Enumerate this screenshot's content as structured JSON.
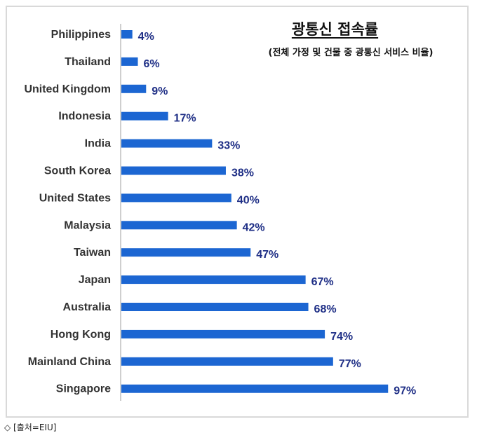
{
  "chart_data": {
    "type": "bar",
    "orientation": "horizontal",
    "title": "광통신 접속률",
    "subtitle": "(전체 가정 및 건물 중 광통신 서비스 비율)",
    "categories": [
      "Philippines",
      "Thailand",
      "United Kingdom",
      "Indonesia",
      "India",
      "South Korea",
      "United States",
      "Malaysia",
      "Taiwan",
      "Japan",
      "Australia",
      "Hong Kong",
      "Mainland China",
      "Singapore"
    ],
    "values": [
      4,
      6,
      9,
      17,
      33,
      38,
      40,
      42,
      47,
      67,
      68,
      74,
      77,
      97
    ],
    "value_labels": [
      "4%",
      "6%",
      "9%",
      "17%",
      "33%",
      "38%",
      "40%",
      "42%",
      "47%",
      "67%",
      "68%",
      "74%",
      "77%",
      "97%"
    ],
    "xlim": [
      0,
      100
    ],
    "grid": false,
    "legend": "none"
  },
  "colors": {
    "bar": "#1c66d2",
    "value_text": "#1f2f86",
    "axis": "#bfbfbf"
  },
  "source": "◇ [출처=EIU]"
}
